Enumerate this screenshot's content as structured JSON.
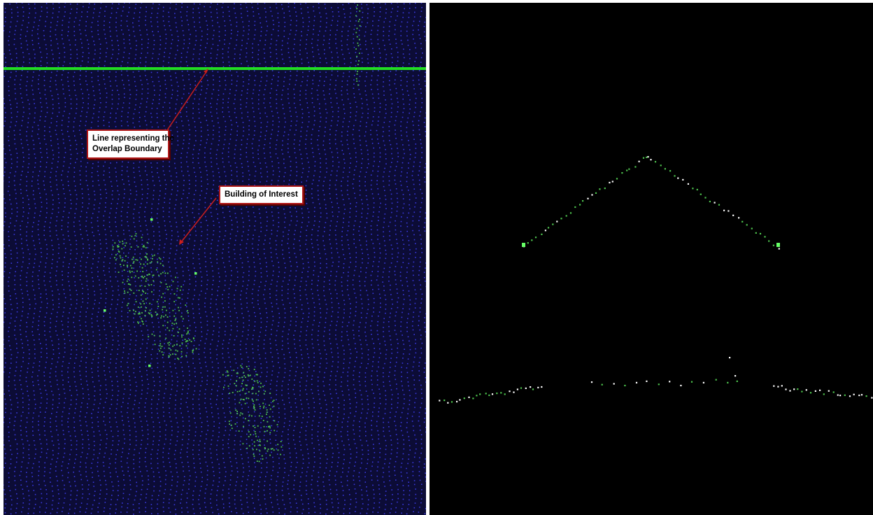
{
  "left_view": {
    "callouts": {
      "overlap_boundary": "Line representing the\nOverlap Boundary",
      "building": "Building of Interest"
    }
  },
  "colors": {
    "background_left": "#0c0c36",
    "background_right": "#000000",
    "ground_points": "#3a3ae0",
    "vegetation_points": "#4ec44e",
    "highlight_points": "#66ff66",
    "boundary_line": "#22dd22",
    "arrow": "#c81e1e",
    "profile_white": "#ffffff"
  }
}
